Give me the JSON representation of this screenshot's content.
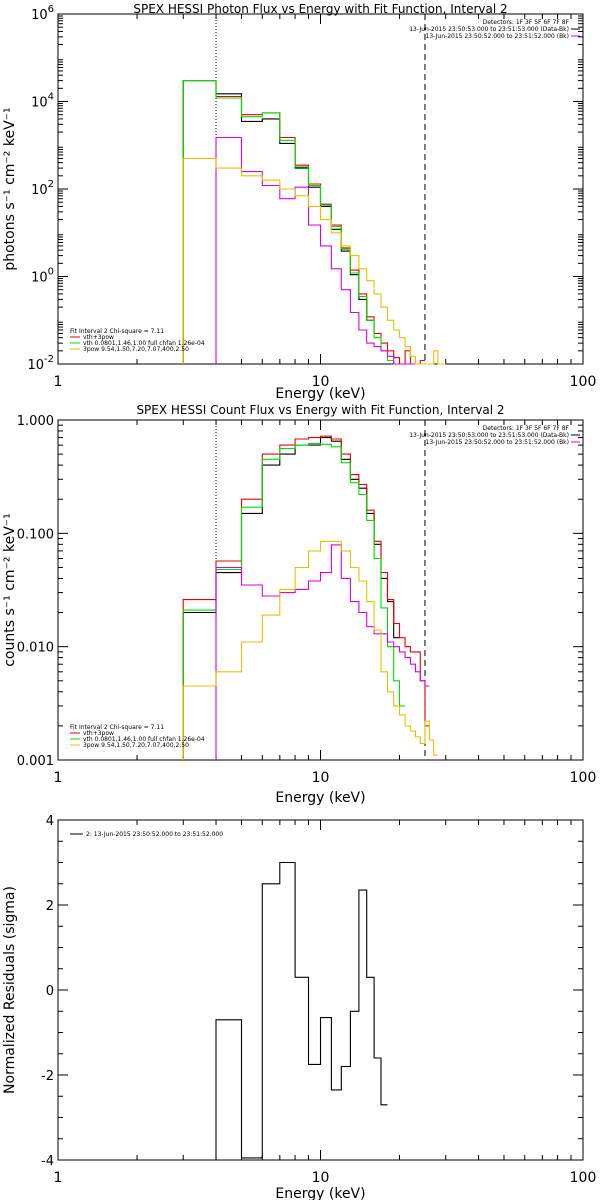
{
  "colors": {
    "black": "#000000",
    "red": "#ee0000",
    "green": "#00dd00",
    "magenta": "#dd00dd",
    "yellow": "#e8c000"
  },
  "chart_data": [
    {
      "type": "line",
      "title": "SPEX HESSI Photon Flux vs Energy with Fit Function, Interval 2",
      "xlabel": "Energy (keV)",
      "ylabel": "photons s⁻¹ cm⁻² keV⁻¹",
      "xscale": "log",
      "yscale": "log",
      "xlim": [
        1,
        100
      ],
      "ylim": [
        0.01,
        1000000
      ],
      "xticks": [
        {
          "v": 1,
          "label": "1"
        },
        {
          "v": 10,
          "label": "10"
        },
        {
          "v": 100,
          "label": "100"
        }
      ],
      "yticks": [
        {
          "v": 0.01,
          "base": "10",
          "exp": "-2"
        },
        {
          "v": 1,
          "base": "10",
          "exp": "0"
        },
        {
          "v": 100,
          "base": "10",
          "exp": "2"
        },
        {
          "v": 10000,
          "base": "10",
          "exp": "4"
        },
        {
          "v": 1000000,
          "base": "10",
          "exp": "6"
        }
      ],
      "vlines": [
        {
          "x": 4,
          "style": "dotted",
          "color": "#000000"
        },
        {
          "x": 25,
          "style": "dashed",
          "color": "#000000"
        }
      ],
      "header": [
        {
          "text": "Detectors: 1F 3F 5F 6F 7F 8F",
          "color": ""
        },
        {
          "text": "13-Jun-2015 23:50:53.000 to 23:51:53.000 (Data-Bk)",
          "color": "#000000"
        },
        {
          "text": "13-Jun-2015 23:50:52.000 to 23:51:52.000 (Bk)",
          "color": "#dd00dd"
        }
      ],
      "legend": [
        {
          "text": "Fit Interval 2   Chi-square = 7.11",
          "color": ""
        },
        {
          "text": "vth+3pow",
          "color": "#ee0000"
        },
        {
          "text": "vth 0.0801,1.46,1.00  full chfan 1.26e-04",
          "color": "#00dd00"
        },
        {
          "text": "3pow 9.54,1.50,7.20,7.07,400,2.50",
          "color": "#e8c000"
        }
      ],
      "edges": [
        3,
        4,
        5,
        6,
        7,
        8,
        9,
        10,
        11,
        12,
        13,
        14,
        15,
        16,
        17,
        18,
        19,
        20,
        21,
        22,
        23,
        24,
        25,
        26,
        27,
        28,
        29,
        30
      ],
      "series": [
        {
          "color": "#000000",
          "values": [
            30000,
            15000,
            3500,
            4000,
            1100,
            300,
            110,
            40,
            12,
            3.8,
            1.1,
            0.3,
            0.1
          ]
        },
        {
          "color": "#ee0000",
          "values": [
            30000,
            13000,
            5000,
            5500,
            1500,
            350,
            130,
            45,
            15,
            4.5,
            1.4,
            0.4,
            0.12,
            0.05,
            0.03,
            0.02,
            0.014,
            0.009,
            0.02,
            0.01,
            0.005,
            0.012
          ]
        },
        {
          "color": "#00dd00",
          "values": [
            30000,
            12000,
            4500,
            5500,
            1300,
            320,
            120,
            43,
            14,
            4.2,
            1.2,
            0.35,
            0.1,
            0.04,
            0.02,
            0.012,
            0.006,
            0.008,
            0.009,
            0.004
          ]
        },
        {
          "color": "#dd00dd",
          "values": [
            null,
            1500,
            250,
            120,
            60,
            110,
            15,
            5,
            1.5,
            0.5,
            0.15,
            0.06,
            0.03,
            0.025,
            0.02,
            0.015,
            0.01,
            0.008,
            0.006,
            0.008,
            0.005
          ]
        },
        {
          "color": "#e8c000",
          "values": [
            500,
            300,
            200,
            160,
            100,
            70,
            40,
            20,
            10,
            5,
            3,
            1.5,
            0.8,
            0.4,
            0.2,
            0.1,
            0.06,
            0.04,
            0.025,
            0.015,
            0.01,
            0.008,
            0.006,
            0.005,
            0.02,
            0.01,
            0.005
          ]
        }
      ]
    },
    {
      "type": "line",
      "title": "SPEX HESSI Count Flux vs Energy with Fit Function, Interval 2",
      "xlabel": "Energy (keV)",
      "ylabel": "counts s⁻¹ cm⁻² keV⁻¹",
      "xscale": "log",
      "yscale": "log",
      "xlim": [
        1,
        100
      ],
      "ylim": [
        0.001,
        1
      ],
      "xticks": [
        {
          "v": 1,
          "label": "1"
        },
        {
          "v": 10,
          "label": "10"
        },
        {
          "v": 100,
          "label": "100"
        }
      ],
      "yticks": [
        {
          "v": 0.001,
          "label": "0.001"
        },
        {
          "v": 0.01,
          "label": "0.010"
        },
        {
          "v": 0.1,
          "label": "0.100"
        },
        {
          "v": 1,
          "label": "1.000"
        }
      ],
      "vlines": [
        {
          "x": 4,
          "style": "dotted",
          "color": "#000000"
        },
        {
          "x": 25,
          "style": "dashed",
          "color": "#000000"
        }
      ],
      "header": [
        {
          "text": "Detectors: 1F 3F 5F 6F 7F 8F",
          "color": ""
        },
        {
          "text": "13-Jun-2015 23:50:53.000 to 23:51:53.000 (Data-Bk)",
          "color": "#000000"
        },
        {
          "text": "13-Jun-2015 23:50:52.000 to 23:51:52.000 (Bk)",
          "color": "#dd00dd"
        }
      ],
      "legend": [
        {
          "text": "Fit Interval 2   Chi-square = 7.11",
          "color": ""
        },
        {
          "text": "vth+3pow",
          "color": "#ee0000"
        },
        {
          "text": "vth 0.0801,1.46,1.00  full chfan 1.26e-04",
          "color": "#00dd00"
        },
        {
          "text": "3pow 9.54,1.50,7.20,7.07,400,2.50",
          "color": "#e8c000"
        }
      ],
      "edges": [
        3,
        4,
        5,
        6,
        7,
        8,
        9,
        10,
        11,
        12,
        13,
        14,
        15,
        16,
        17,
        18,
        19,
        20,
        21,
        22,
        23,
        24,
        25,
        26,
        27,
        28,
        29,
        30
      ],
      "series": [
        {
          "color": "#000000",
          "values": [
            0.02,
            0.045,
            0.15,
            0.4,
            0.5,
            0.6,
            0.6,
            0.7,
            0.65,
            0.45,
            0.3,
            0.25,
            0.15,
            0.08,
            0.04,
            0.025,
            0.012
          ]
        },
        {
          "color": "#ee0000",
          "values": [
            0.026,
            0.057,
            0.2,
            0.5,
            0.6,
            0.68,
            0.7,
            0.72,
            0.68,
            0.5,
            0.33,
            0.27,
            0.16,
            0.085,
            0.045,
            0.026,
            0.016,
            0.012,
            0.01,
            0.009,
            0.009,
            0.005,
            0.002
          ]
        },
        {
          "color": "#00dd00",
          "values": [
            0.021,
            0.048,
            0.17,
            0.45,
            0.56,
            0.6,
            0.62,
            0.61,
            0.58,
            0.42,
            0.28,
            0.22,
            0.13,
            0.06,
            0.022,
            0.01,
            0.005,
            0.003
          ]
        },
        {
          "color": "#dd00dd",
          "values": [
            null,
            0.05,
            0.035,
            0.028,
            0.03,
            0.032,
            0.038,
            0.045,
            0.079,
            0.04,
            0.025,
            0.02,
            0.015,
            0.013,
            0.013,
            0.011,
            0.01,
            0.009,
            0.008,
            0.007,
            0.006,
            0.005,
            0.0045
          ]
        },
        {
          "color": "#e8c000",
          "values": [
            0.0045,
            0.006,
            0.011,
            0.019,
            0.032,
            0.05,
            0.07,
            0.085,
            0.085,
            0.07,
            0.05,
            0.038,
            0.025,
            0.014,
            0.006,
            0.004,
            0.003,
            0.0025,
            0.002,
            0.0018,
            0.0016,
            0.0014,
            0.0022,
            0.0015,
            0.0011
          ]
        }
      ]
    },
    {
      "type": "line",
      "title": "",
      "xlabel": "Energy (keV)",
      "ylabel": "Normalized Residuals (sigma)",
      "xscale": "log",
      "yscale": "linear",
      "xlim": [
        1,
        100
      ],
      "ylim": [
        -4,
        4
      ],
      "xticks": [
        {
          "v": 1,
          "label": "1"
        },
        {
          "v": 10,
          "label": "10"
        },
        {
          "v": 100,
          "label": "100"
        }
      ],
      "yticks": [
        {
          "v": -4,
          "label": "-4"
        },
        {
          "v": -2,
          "label": "-2"
        },
        {
          "v": 0,
          "label": "0"
        },
        {
          "v": 2,
          "label": "2"
        },
        {
          "v": 4,
          "label": "4"
        }
      ],
      "vlines": [],
      "header": [],
      "legend": [
        {
          "text": "2: 13-Jun-2015 23:50:52.000 to 23:51:52.000",
          "color": "#000000",
          "line": true
        }
      ],
      "edges": [
        4,
        5,
        6,
        7,
        8,
        9,
        10,
        11,
        12,
        13,
        14,
        15,
        16,
        17,
        18,
        19,
        20,
        21,
        22,
        23,
        24,
        25
      ],
      "series": [
        {
          "color": "#000000",
          "values": [
            -0.7,
            -3.95,
            2.5,
            3.0,
            0.3,
            -1.75,
            -0.65,
            -2.35,
            -1.8,
            -0.5,
            2.35,
            0.3,
            -1.6,
            -2.7
          ]
        }
      ]
    }
  ]
}
